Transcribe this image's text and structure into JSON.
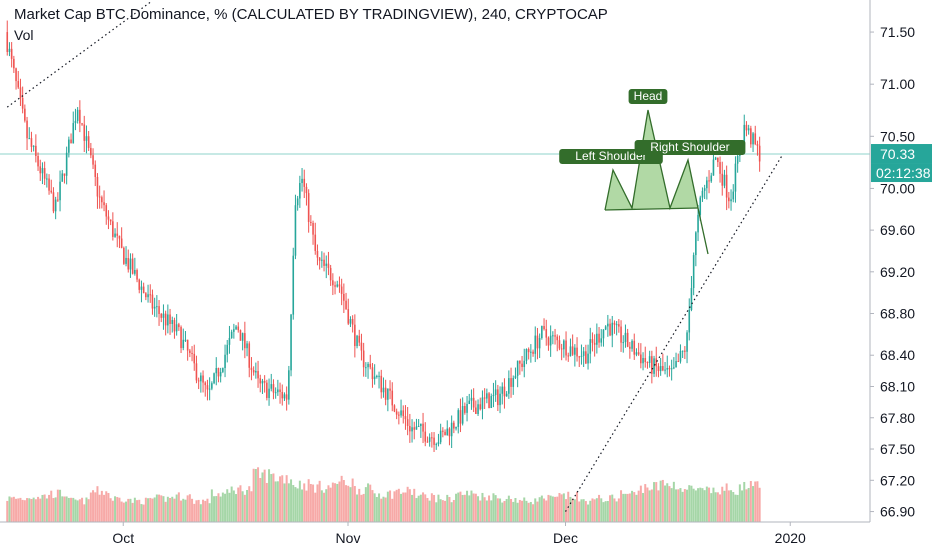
{
  "header": {
    "title": "Market Cap BTC Dominance, % (CALCULATED BY TRADINGVIEW), 240, CRYPTOCAP",
    "volume_label": "Vol"
  },
  "chart_data": {
    "type": "candlestick",
    "title": "Market Cap BTC Dominance, % (CALCULATED BY TRADINGVIEW), 240, CRYPTOCAP",
    "x_axis": {
      "tick_labels": [
        "Oct",
        "Nov",
        "Dec",
        "2020"
      ],
      "tick_dates": [
        "2019-10-01",
        "2019-11-01",
        "2019-12-01",
        "2020-01-01"
      ]
    },
    "y_axis": {
      "side": "right",
      "ylim": [
        66.8,
        71.75
      ],
      "ticks": [
        71.5,
        71.0,
        70.5,
        70.0,
        69.6,
        69.2,
        68.8,
        68.4,
        68.1,
        67.8,
        67.5,
        67.2,
        66.9
      ],
      "tick_labels": [
        "71.50",
        "71.00",
        "70.50",
        "70.00",
        "69.60",
        "69.20",
        "68.80",
        "68.40",
        "68.10",
        "67.80",
        "67.50",
        "67.20",
        "66.90"
      ]
    },
    "last_price": {
      "value": 70.33,
      "label": "70.33",
      "countdown": "02:12:38",
      "color": "#26a69a"
    },
    "price_series": {
      "name": "",
      "dates": [
        "2019-09-15",
        "2019-09-18",
        "2019-09-22",
        "2019-09-25",
        "2019-09-28",
        "2019-10-01",
        "2019-10-05",
        "2019-10-09",
        "2019-10-13",
        "2019-10-17",
        "2019-10-20",
        "2019-10-24",
        "2019-10-25",
        "2019-10-26",
        "2019-10-28",
        "2019-10-31",
        "2019-11-03",
        "2019-11-07",
        "2019-11-10",
        "2019-11-14",
        "2019-11-18",
        "2019-11-22",
        "2019-11-25",
        "2019-11-28",
        "2019-12-01",
        "2019-12-04",
        "2019-12-07",
        "2019-12-10",
        "2019-12-13",
        "2019-12-16",
        "2019-12-18",
        "2019-12-19",
        "2019-12-20",
        "2019-12-22",
        "2019-12-24",
        "2019-12-26",
        "2019-12-28"
      ],
      "close": [
        71.5,
        70.5,
        69.8,
        70.8,
        69.9,
        69.4,
        68.9,
        68.6,
        68.0,
        68.7,
        68.1,
        68.0,
        69.9,
        70.1,
        69.3,
        69.1,
        68.4,
        68.0,
        67.7,
        67.6,
        67.9,
        68.0,
        68.3,
        68.6,
        68.5,
        68.4,
        68.7,
        68.5,
        68.3,
        68.2,
        68.5,
        69.4,
        69.9,
        70.3,
        69.9,
        70.6,
        70.33
      ],
      "up_color": "#26a69a",
      "down_color": "#ef5350"
    },
    "volume": {
      "values_relative": [
        0.5,
        0.55,
        0.6,
        0.45,
        0.65,
        0.5,
        0.45,
        0.5,
        0.55,
        0.45,
        0.6,
        0.7,
        1.0,
        0.95,
        0.8,
        0.75,
        0.85,
        0.7,
        0.6,
        0.65,
        0.55,
        0.5,
        0.6,
        0.55,
        0.5,
        0.45,
        0.5,
        0.55,
        0.45,
        0.5,
        0.6,
        0.75,
        0.8,
        0.7,
        0.65,
        0.7,
        0.75
      ],
      "up_color": "#a5d6a7",
      "down_color": "#f7a9a7"
    },
    "pattern": {
      "name": "Head and Shoulders",
      "labels": {
        "left_shoulder": "Left Shoulder",
        "head": "Head",
        "right_shoulder": "Right Shoulder"
      },
      "color": "#336d2b",
      "fill": "#9ed08e"
    },
    "trendlines": {
      "upper_dotted": {
        "from": [
          "2019-09-15",
          70.78
        ],
        "to": [
          "2019-10-05",
          71.8
        ]
      },
      "lower_dotted": {
        "from": [
          "2019-12-01",
          66.9
        ],
        "to": [
          "2019-12-31",
          70.33
        ]
      }
    },
    "grid": false,
    "legend": "none"
  }
}
